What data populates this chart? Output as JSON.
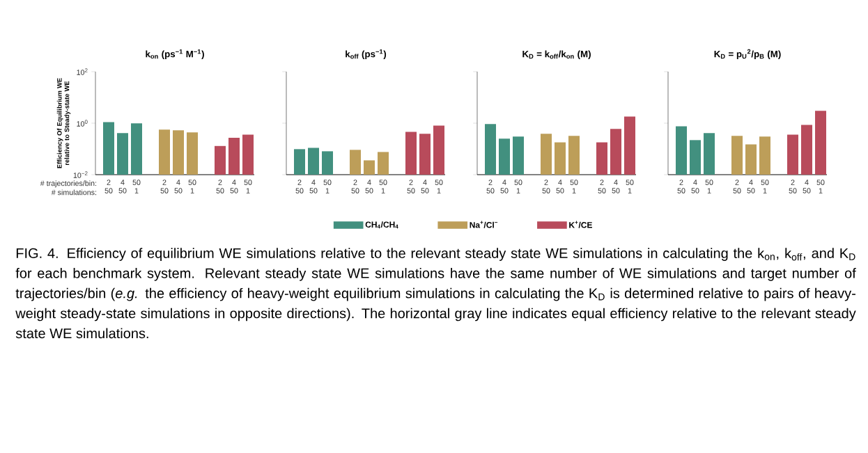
{
  "chart_data": [
    {
      "type": "bar",
      "title": "k$_{on}$ (ps$^{−1}$ M$^{−1}$)",
      "ylabel": "Efficiency Of Equilibrium WE relative to Steady-state WE",
      "log": true,
      "ylim": [
        0.01,
        100
      ],
      "yticks": [
        {
          "value": 0.01,
          "label": "10$^{−2}$"
        },
        {
          "value": 1,
          "label": "10$^{0}$"
        },
        {
          "value": 100,
          "label": "10$^{2}$"
        }
      ],
      "categories": [
        "2 50",
        "4 50",
        "50 1",
        null,
        "2 50",
        "4 50",
        "50 1",
        null,
        "2 50",
        "4 50",
        "50 1"
      ],
      "series": [
        {
          "name": "CH$_{4}$/CH$_{4}$",
          "color": "#42907f",
          "values": [
            1.1,
            0.41,
            0.98,
            null,
            null,
            null,
            null,
            null,
            null,
            null,
            null
          ]
        },
        {
          "name": "Na$^{+}$/Cl$^{−}$",
          "color": "#bd9e59",
          "values": [
            null,
            null,
            null,
            null,
            0.56,
            0.53,
            0.44,
            null,
            null,
            null,
            null
          ]
        },
        {
          "name": "K$^{+}$/CE",
          "color": "#b84b5b",
          "values": [
            null,
            null,
            null,
            null,
            null,
            null,
            null,
            null,
            0.13,
            0.27,
            0.36
          ]
        }
      ],
      "legend": "bottom",
      "annotations": [
        "# trajectories/bin:",
        "# simulations:",
        "FIG. 4. Efficiency of equilibrium WE simulations relative to the relevant steady state WE simulations in calculating the k$_{on}$, k$_{off}$, and K$_{D}$ for each benchmark system. Relevant steady state WE simulations have the same number of WE simulations and target number of trajectories/bin (*e.g.* the efficiency of heavy-weight equilibrium simulations in calculating the K$_{D}$ is determined relative to pairs of heavy-weight steady-state simulations in opposite directions). The horizontal gray line indicates equal efficiency relative to the relevant steady state WE simulations."
      ]
    },
    {
      "type": "bar",
      "title": "k$_{off}$ (ps$^{−1}$)",
      "log": true,
      "ylim": [
        0.01,
        100
      ],
      "tick_labels": "x",
      "yticks": [
        {
          "value": 0.01,
          "label": null
        },
        {
          "value": 1,
          "label": null
        },
        {
          "value": 100,
          "label": null
        }
      ],
      "categories": [
        "2 50",
        "4 50",
        "50 1",
        null,
        "2 50",
        "4 50",
        "50 1",
        null,
        "2 50",
        "4 50",
        "50 1"
      ],
      "series": [
        {
          "color": "#42907f",
          "values": [
            0.098,
            0.11,
            0.081,
            null,
            null,
            null,
            null,
            null,
            null,
            null,
            null
          ]
        },
        {
          "color": "#bd9e59",
          "values": [
            null,
            null,
            null,
            null,
            0.092,
            0.036,
            0.076,
            null,
            null,
            null,
            null
          ]
        },
        {
          "color": "#b84b5b",
          "values": [
            null,
            null,
            null,
            null,
            null,
            null,
            null,
            null,
            0.46,
            0.39,
            0.81
          ]
        }
      ]
    },
    {
      "type": "bar",
      "title": "K$_{D}$ = k$_{off}$/k$_{on}$ (M)",
      "log": true,
      "ylim": [
        0.01,
        100
      ],
      "tick_labels": "x",
      "yticks": [
        {
          "value": 0.01,
          "label": null
        },
        {
          "value": 1,
          "label": null
        },
        {
          "value": 100,
          "label": null
        }
      ],
      "categories": [
        "2 50",
        "4 50",
        "50 1",
        null,
        "2 50",
        "4 50",
        "50 1",
        null,
        "2 50",
        "4 50",
        "50 1"
      ],
      "series": [
        {
          "color": "#42907f",
          "values": [
            0.92,
            0.25,
            0.3,
            null,
            null,
            null,
            null,
            null,
            null,
            null,
            null
          ]
        },
        {
          "color": "#bd9e59",
          "values": [
            null,
            null,
            null,
            null,
            0.39,
            0.18,
            0.32,
            null,
            null,
            null,
            null
          ]
        },
        {
          "color": "#b84b5b",
          "values": [
            null,
            null,
            null,
            null,
            null,
            null,
            null,
            null,
            0.18,
            0.6,
            1.8
          ]
        }
      ]
    },
    {
      "type": "bar",
      "title": "K$_{D}$ = p$_{U}$$^{2}$/p$_{B}$ (M)",
      "log": true,
      "ylim": [
        0.01,
        100
      ],
      "tick_labels": "x",
      "yticks": [
        {
          "value": 0.01,
          "label": null
        },
        {
          "value": 1,
          "label": null
        },
        {
          "value": 100,
          "label": null
        }
      ],
      "categories": [
        "2 50",
        "4 50",
        "50 1",
        null,
        "2 50",
        "4 50",
        "50 1",
        null,
        "2 50",
        "4 50",
        "50 1"
      ],
      "series": [
        {
          "color": "#42907f",
          "values": [
            0.76,
            0.22,
            0.41,
            null,
            null,
            null,
            null,
            null,
            null,
            null,
            null
          ]
        },
        {
          "color": "#bd9e59",
          "values": [
            null,
            null,
            null,
            null,
            0.32,
            0.15,
            0.3,
            null,
            null,
            null,
            null
          ]
        },
        {
          "color": "#b84b5b",
          "values": [
            null,
            null,
            null,
            null,
            null,
            null,
            null,
            null,
            0.36,
            0.86,
            3.0
          ]
        }
      ]
    }
  ]
}
